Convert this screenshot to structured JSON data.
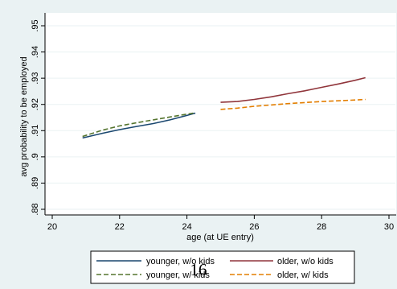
{
  "page": {
    "number": "16"
  },
  "chart_data": {
    "type": "line",
    "xlabel": "age (at UE entry)",
    "ylabel": "avg probability to be employed",
    "xlim": [
      20,
      30
    ],
    "ylim": [
      0.875,
      0.955
    ],
    "xticks": [
      20,
      22,
      24,
      26,
      28,
      30
    ],
    "yticks": [
      0.88,
      0.89,
      0.9,
      0.91,
      0.92,
      0.93,
      0.94,
      0.95
    ],
    "xtick_labels": [
      "20",
      "22",
      "24",
      "26",
      "28",
      "30"
    ],
    "ytick_labels": [
      ".88",
      ".89",
      ".9",
      ".91",
      ".92",
      ".93",
      ".94",
      ".95"
    ],
    "grid": "horizontal",
    "legend_position": "bottom",
    "colors": {
      "background": "#eaf2f3",
      "plot_area": "#ffffff",
      "gridline": "#eaf2f3"
    },
    "series": [
      {
        "name": "younger, w/o kids",
        "color": "#1a476f",
        "dash": "solid",
        "x": [
          20.9,
          21.5,
          22.0,
          22.5,
          23.0,
          23.5,
          24.0,
          24.25
        ],
        "y": [
          0.9072,
          0.909,
          0.9104,
          0.9116,
          0.9127,
          0.9141,
          0.9158,
          0.9167
        ]
      },
      {
        "name": "older, w/o kids",
        "color": "#90353b",
        "dash": "solid",
        "x": [
          25.0,
          25.5,
          26.0,
          26.5,
          27.0,
          27.5,
          28.0,
          28.5,
          29.0,
          29.3
        ],
        "y": [
          0.9208,
          0.9211,
          0.9219,
          0.9229,
          0.9241,
          0.9252,
          0.9265,
          0.9278,
          0.9292,
          0.9302
        ]
      },
      {
        "name": "younger, w/ kids",
        "color": "#55752f",
        "dash": "dashed",
        "x": [
          20.9,
          21.5,
          22.0,
          22.5,
          23.0,
          23.5,
          24.0,
          24.25
        ],
        "y": [
          0.9078,
          0.9102,
          0.9118,
          0.913,
          0.9141,
          0.9152,
          0.9163,
          0.9168
        ]
      },
      {
        "name": "older, w/ kids",
        "color": "#e37e00",
        "dash": "dashed",
        "x": [
          25.0,
          25.5,
          26.0,
          26.5,
          27.0,
          27.5,
          28.0,
          28.5,
          29.0,
          29.3
        ],
        "y": [
          0.9181,
          0.9186,
          0.9193,
          0.9198,
          0.9203,
          0.9207,
          0.9211,
          0.9214,
          0.9217,
          0.9219
        ]
      }
    ],
    "legend_order": [
      0,
      1,
      2,
      3
    ]
  }
}
